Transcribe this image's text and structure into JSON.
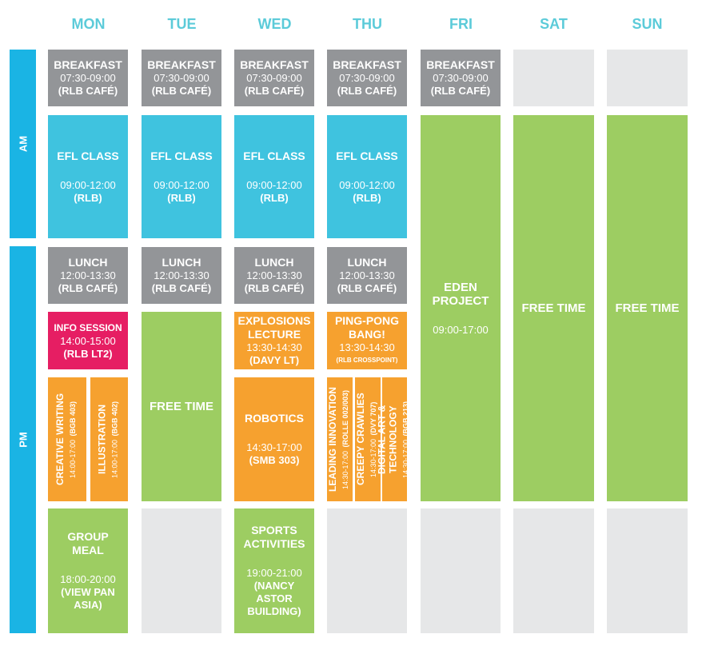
{
  "days": [
    "MON",
    "TUE",
    "WED",
    "THU",
    "FRI",
    "SAT",
    "SUN"
  ],
  "periods": [
    "AM",
    "PM"
  ],
  "blocks": [
    {
      "title": "BREAKFAST",
      "time": "07:30-09:00",
      "place": "(RLB CAFÉ)"
    },
    {
      "title": "BREAKFAST",
      "time": "07:30-09:00",
      "place": "(RLB CAFÉ)"
    },
    {
      "title": "BREAKFAST",
      "time": "07:30-09:00",
      "place": "(RLB CAFÉ)"
    },
    {
      "title": "BREAKFAST",
      "time": "07:30-09:00",
      "place": "(RLB CAFÉ)"
    },
    {
      "title": "BREAKFAST",
      "time": "07:30-09:00",
      "place": "(RLB CAFÉ)"
    },
    {
      "title": "EFL CLASS",
      "time": "09:00-12:00",
      "place": "(RLB)"
    },
    {
      "title": "EFL CLASS",
      "time": "09:00-12:00",
      "place": "(RLB)"
    },
    {
      "title": "EFL CLASS",
      "time": "09:00-12:00",
      "place": "(RLB)"
    },
    {
      "title": "EFL CLASS",
      "time": "09:00-12:00",
      "place": "(RLB)"
    },
    {
      "title": "EDEN PROJECT",
      "time": "09:00-17:00"
    },
    {
      "title": "FREE TIME"
    },
    {
      "title": "FREE TIME"
    },
    {
      "title": "LUNCH",
      "time": "12:00-13:30",
      "place": "(RLB CAFÉ)"
    },
    {
      "title": "LUNCH",
      "time": "12:00-13:30",
      "place": "(RLB CAFÉ)"
    },
    {
      "title": "LUNCH",
      "time": "12:00-13:30",
      "place": "(RLB CAFÉ)"
    },
    {
      "title": "LUNCH",
      "time": "12:00-13:30",
      "place": "(RLB CAFÉ)"
    },
    {
      "title": "INFO SESSION",
      "time": "14:00-15:00",
      "place": "(RLB LT2)"
    },
    {
      "title": "CREATIVE WRITING",
      "time": "14:00-17:00",
      "place": "(BGB 403)"
    },
    {
      "title": "ILLUSTRATION",
      "time": "14:00-17:00",
      "place": "(BGB 402)"
    },
    {
      "title": "FREE TIME"
    },
    {
      "title": "EXPLOSIONS LECTURE",
      "time": "13:30-14:30",
      "place": "(DAVY LT)"
    },
    {
      "title": "ROBOTICS",
      "time": "14:30-17:00",
      "place": "(SMB 303)"
    },
    {
      "title": "PING-PONG BANG!",
      "time": "13:30-14:30",
      "place": "(RLB CROSSPOINT)"
    },
    {
      "title": "LEADING INNOVATION",
      "time": "14:30-17:00",
      "place": "(ROLLE 002/003)"
    },
    {
      "title": "CREEPY CRAWLIES",
      "time": "14:30-17:00",
      "place": "(DVY 707)"
    },
    {
      "title": "DIGITAL ART & TECHNOLOGY",
      "time": "14:30-17:00",
      "place": "(BGB 213)"
    },
    {
      "title": "GROUP MEAL",
      "time": "18:00-20:00",
      "place": "(VIEW PAN ASIA)"
    },
    {
      "title": "SPORTS ACTIVITIES",
      "time": "19:00-21:00",
      "place": "(NANCY ASTOR BUILDING)"
    }
  ]
}
